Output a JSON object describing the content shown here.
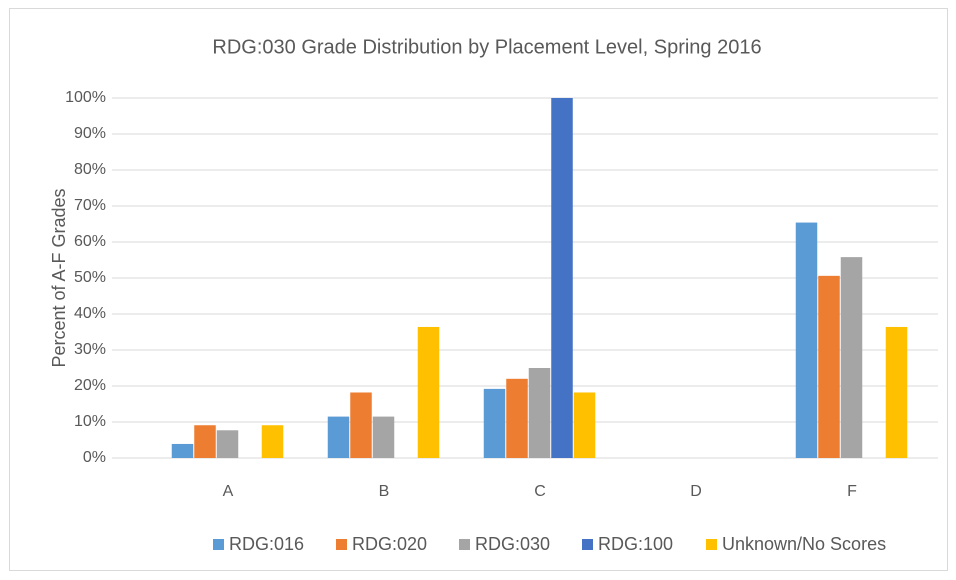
{
  "chart_data": {
    "type": "bar",
    "title": "RDG:030 Grade Distribution by Placement Level, Spring 2016",
    "y_label": "Percent of A-F Grades",
    "categories": [
      "A",
      "B",
      "C",
      "D",
      "F"
    ],
    "series": [
      {
        "name": "RDG:016",
        "color": "#5b9bd5",
        "values": [
          3.9,
          11.5,
          19.2,
          0,
          65.4
        ]
      },
      {
        "name": "RDG:020",
        "color": "#ed7d31",
        "values": [
          9.1,
          18.2,
          22,
          0,
          50.6
        ]
      },
      {
        "name": "RDG:030",
        "color": "#a5a5a5",
        "values": [
          7.7,
          11.5,
          25,
          0,
          55.8
        ]
      },
      {
        "name": "RDG:100",
        "color": "#4472c4",
        "values": [
          0,
          0,
          100,
          0,
          0
        ]
      },
      {
        "name": "Unknown/No Scores",
        "color": "#ffc000",
        "values": [
          9.1,
          36.4,
          18.2,
          0,
          36.4
        ]
      }
    ],
    "ylim": [
      0,
      100
    ],
    "yticks": [
      {
        "value": 0,
        "label": "0%"
      },
      {
        "value": 10,
        "label": "10%"
      },
      {
        "value": 20,
        "label": "20%"
      },
      {
        "value": 30,
        "label": "30%"
      },
      {
        "value": 40,
        "label": "40%"
      },
      {
        "value": 50,
        "label": "50%"
      },
      {
        "value": 60,
        "label": "60%"
      },
      {
        "value": 70,
        "label": "70%"
      },
      {
        "value": 80,
        "label": "80%"
      },
      {
        "value": 90,
        "label": "90%"
      },
      {
        "value": 100,
        "label": "100%"
      }
    ],
    "grid": true,
    "legend": "bottom"
  }
}
